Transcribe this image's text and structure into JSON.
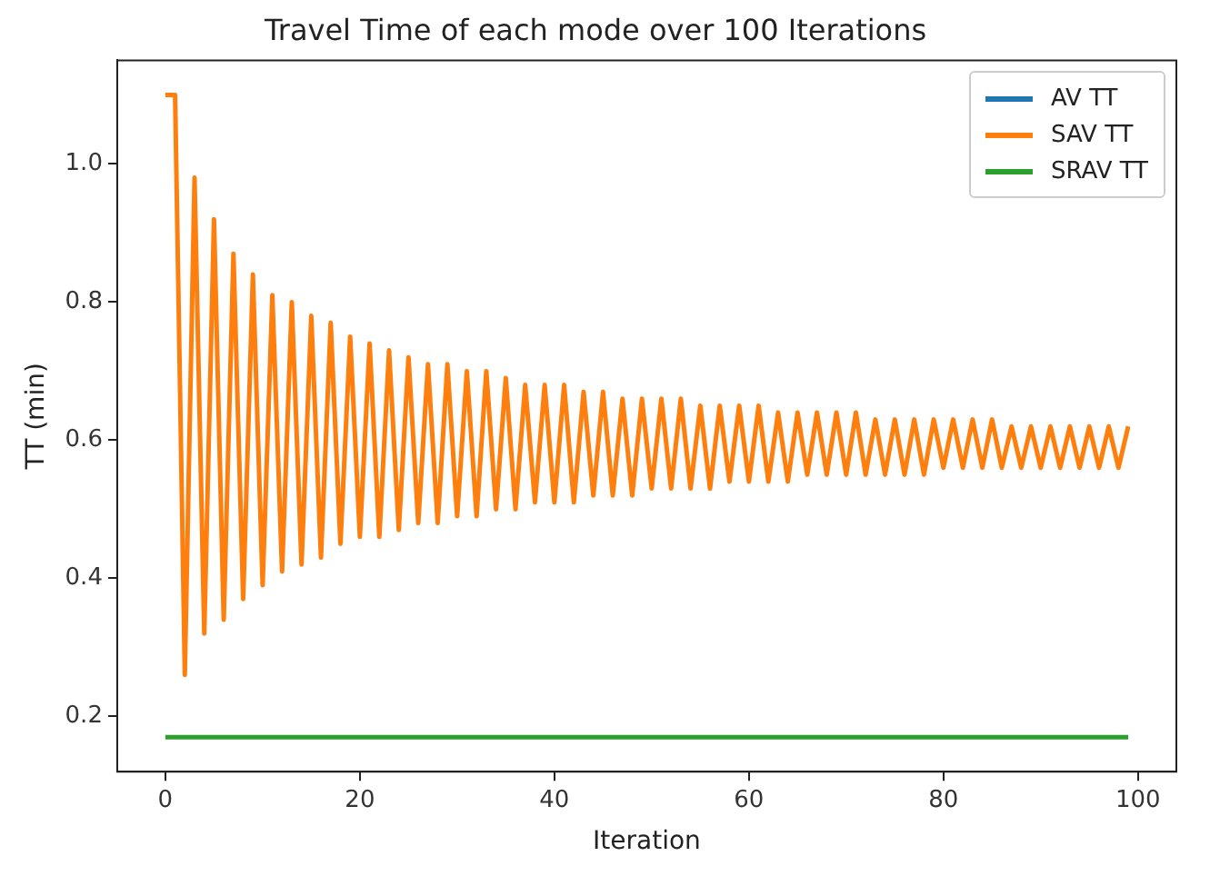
{
  "chart_data": {
    "type": "line",
    "title": "Travel Time of each mode over 100 Iterations",
    "xlabel": "Iteration",
    "ylabel": "TT (min)",
    "x": [
      0,
      1,
      2,
      3,
      4,
      5,
      6,
      7,
      8,
      9,
      10,
      11,
      12,
      13,
      14,
      15,
      16,
      17,
      18,
      19,
      20,
      21,
      22,
      23,
      24,
      25,
      26,
      27,
      28,
      29,
      30,
      31,
      32,
      33,
      34,
      35,
      36,
      37,
      38,
      39,
      40,
      41,
      42,
      43,
      44,
      45,
      46,
      47,
      48,
      49,
      50,
      51,
      52,
      53,
      54,
      55,
      56,
      57,
      58,
      59,
      60,
      61,
      62,
      63,
      64,
      65,
      66,
      67,
      68,
      69,
      70,
      71,
      72,
      73,
      74,
      75,
      76,
      77,
      78,
      79,
      80,
      81,
      82,
      83,
      84,
      85,
      86,
      87,
      88,
      89,
      90,
      91,
      92,
      93,
      94,
      95,
      96,
      97,
      98,
      99
    ],
    "series": [
      {
        "name": "AV TT",
        "color": "#1f77b4",
        "values": [
          null,
          null,
          null,
          null,
          null,
          null,
          null,
          null,
          null,
          null,
          null,
          null,
          null,
          null,
          null,
          null,
          null,
          null,
          null,
          null,
          null,
          null,
          null,
          null,
          null,
          null,
          null,
          null,
          null,
          null,
          null,
          null,
          null,
          null,
          null,
          null,
          null,
          null,
          null,
          null,
          null,
          null,
          null,
          null,
          null,
          null,
          null,
          null,
          null,
          null,
          null,
          null,
          null,
          null,
          null,
          null,
          null,
          null,
          null,
          null,
          null,
          null,
          null,
          null,
          null,
          null,
          null,
          null,
          null,
          null,
          null,
          null,
          null,
          null,
          null,
          null,
          null,
          null,
          null,
          null,
          null,
          null,
          null,
          null,
          null,
          null,
          null,
          null,
          null,
          null,
          null,
          null,
          null,
          null,
          null,
          null,
          null,
          null,
          null,
          null
        ]
      },
      {
        "name": "SAV TT",
        "color": "#ff7f0e",
        "values": [
          1.1,
          1.1,
          0.26,
          0.98,
          0.32,
          0.92,
          0.34,
          0.87,
          0.37,
          0.84,
          0.39,
          0.81,
          0.41,
          0.8,
          0.42,
          0.78,
          0.43,
          0.77,
          0.45,
          0.75,
          0.46,
          0.74,
          0.46,
          0.73,
          0.47,
          0.72,
          0.48,
          0.71,
          0.48,
          0.71,
          0.49,
          0.7,
          0.49,
          0.7,
          0.5,
          0.69,
          0.5,
          0.68,
          0.51,
          0.68,
          0.51,
          0.68,
          0.51,
          0.67,
          0.52,
          0.67,
          0.52,
          0.66,
          0.52,
          0.66,
          0.53,
          0.66,
          0.53,
          0.66,
          0.53,
          0.65,
          0.53,
          0.65,
          0.54,
          0.65,
          0.54,
          0.65,
          0.54,
          0.64,
          0.54,
          0.64,
          0.55,
          0.64,
          0.55,
          0.64,
          0.55,
          0.64,
          0.55,
          0.63,
          0.55,
          0.63,
          0.55,
          0.63,
          0.55,
          0.63,
          0.56,
          0.63,
          0.56,
          0.63,
          0.56,
          0.63,
          0.56,
          0.62,
          0.56,
          0.62,
          0.56,
          0.62,
          0.56,
          0.62,
          0.56,
          0.62,
          0.56,
          0.62,
          0.56,
          0.62
        ]
      },
      {
        "name": "SRAV TT",
        "color": "#2ca02c",
        "x": [
          0,
          99
        ],
        "values": [
          0.17,
          0.17
        ]
      }
    ],
    "xlim": [
      -4.95,
      103.95
    ],
    "xticks": [
      0,
      20,
      40,
      60,
      80,
      100
    ],
    "ylim": [
      0.12,
      1.15
    ],
    "yticks": [
      {
        "value": 0.2,
        "label": "0.2"
      },
      {
        "value": 0.4,
        "label": "0.4"
      },
      {
        "value": 0.6,
        "label": "0.6"
      },
      {
        "value": 0.8,
        "label": "0.8"
      },
      {
        "value": 1.0,
        "label": "1.0"
      }
    ],
    "grid": false,
    "legend": "top right",
    "line_style": "solid",
    "marker": "none"
  }
}
